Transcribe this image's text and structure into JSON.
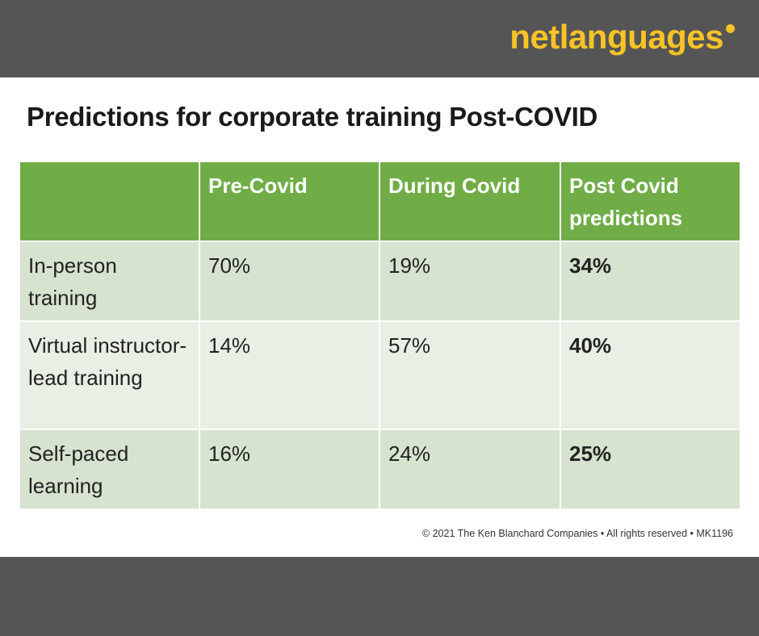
{
  "header": {
    "logo": "netlanguages"
  },
  "title": "Predictions for corporate training Post-COVID",
  "table": {
    "columns": [
      "Pre-Covid",
      "During Covid",
      "Post Covid predictions"
    ],
    "rows": [
      [
        "In-person training",
        "70%",
        "19%",
        "34%"
      ],
      [
        "Virtual instructor-lead training",
        "14%",
        "57%",
        "40%"
      ],
      [
        "Self-paced learning",
        "16%",
        "24%",
        "25%"
      ]
    ]
  },
  "footer": "© 2021 The Ken Blanchard Companies • All rights reserved • MK1196"
}
